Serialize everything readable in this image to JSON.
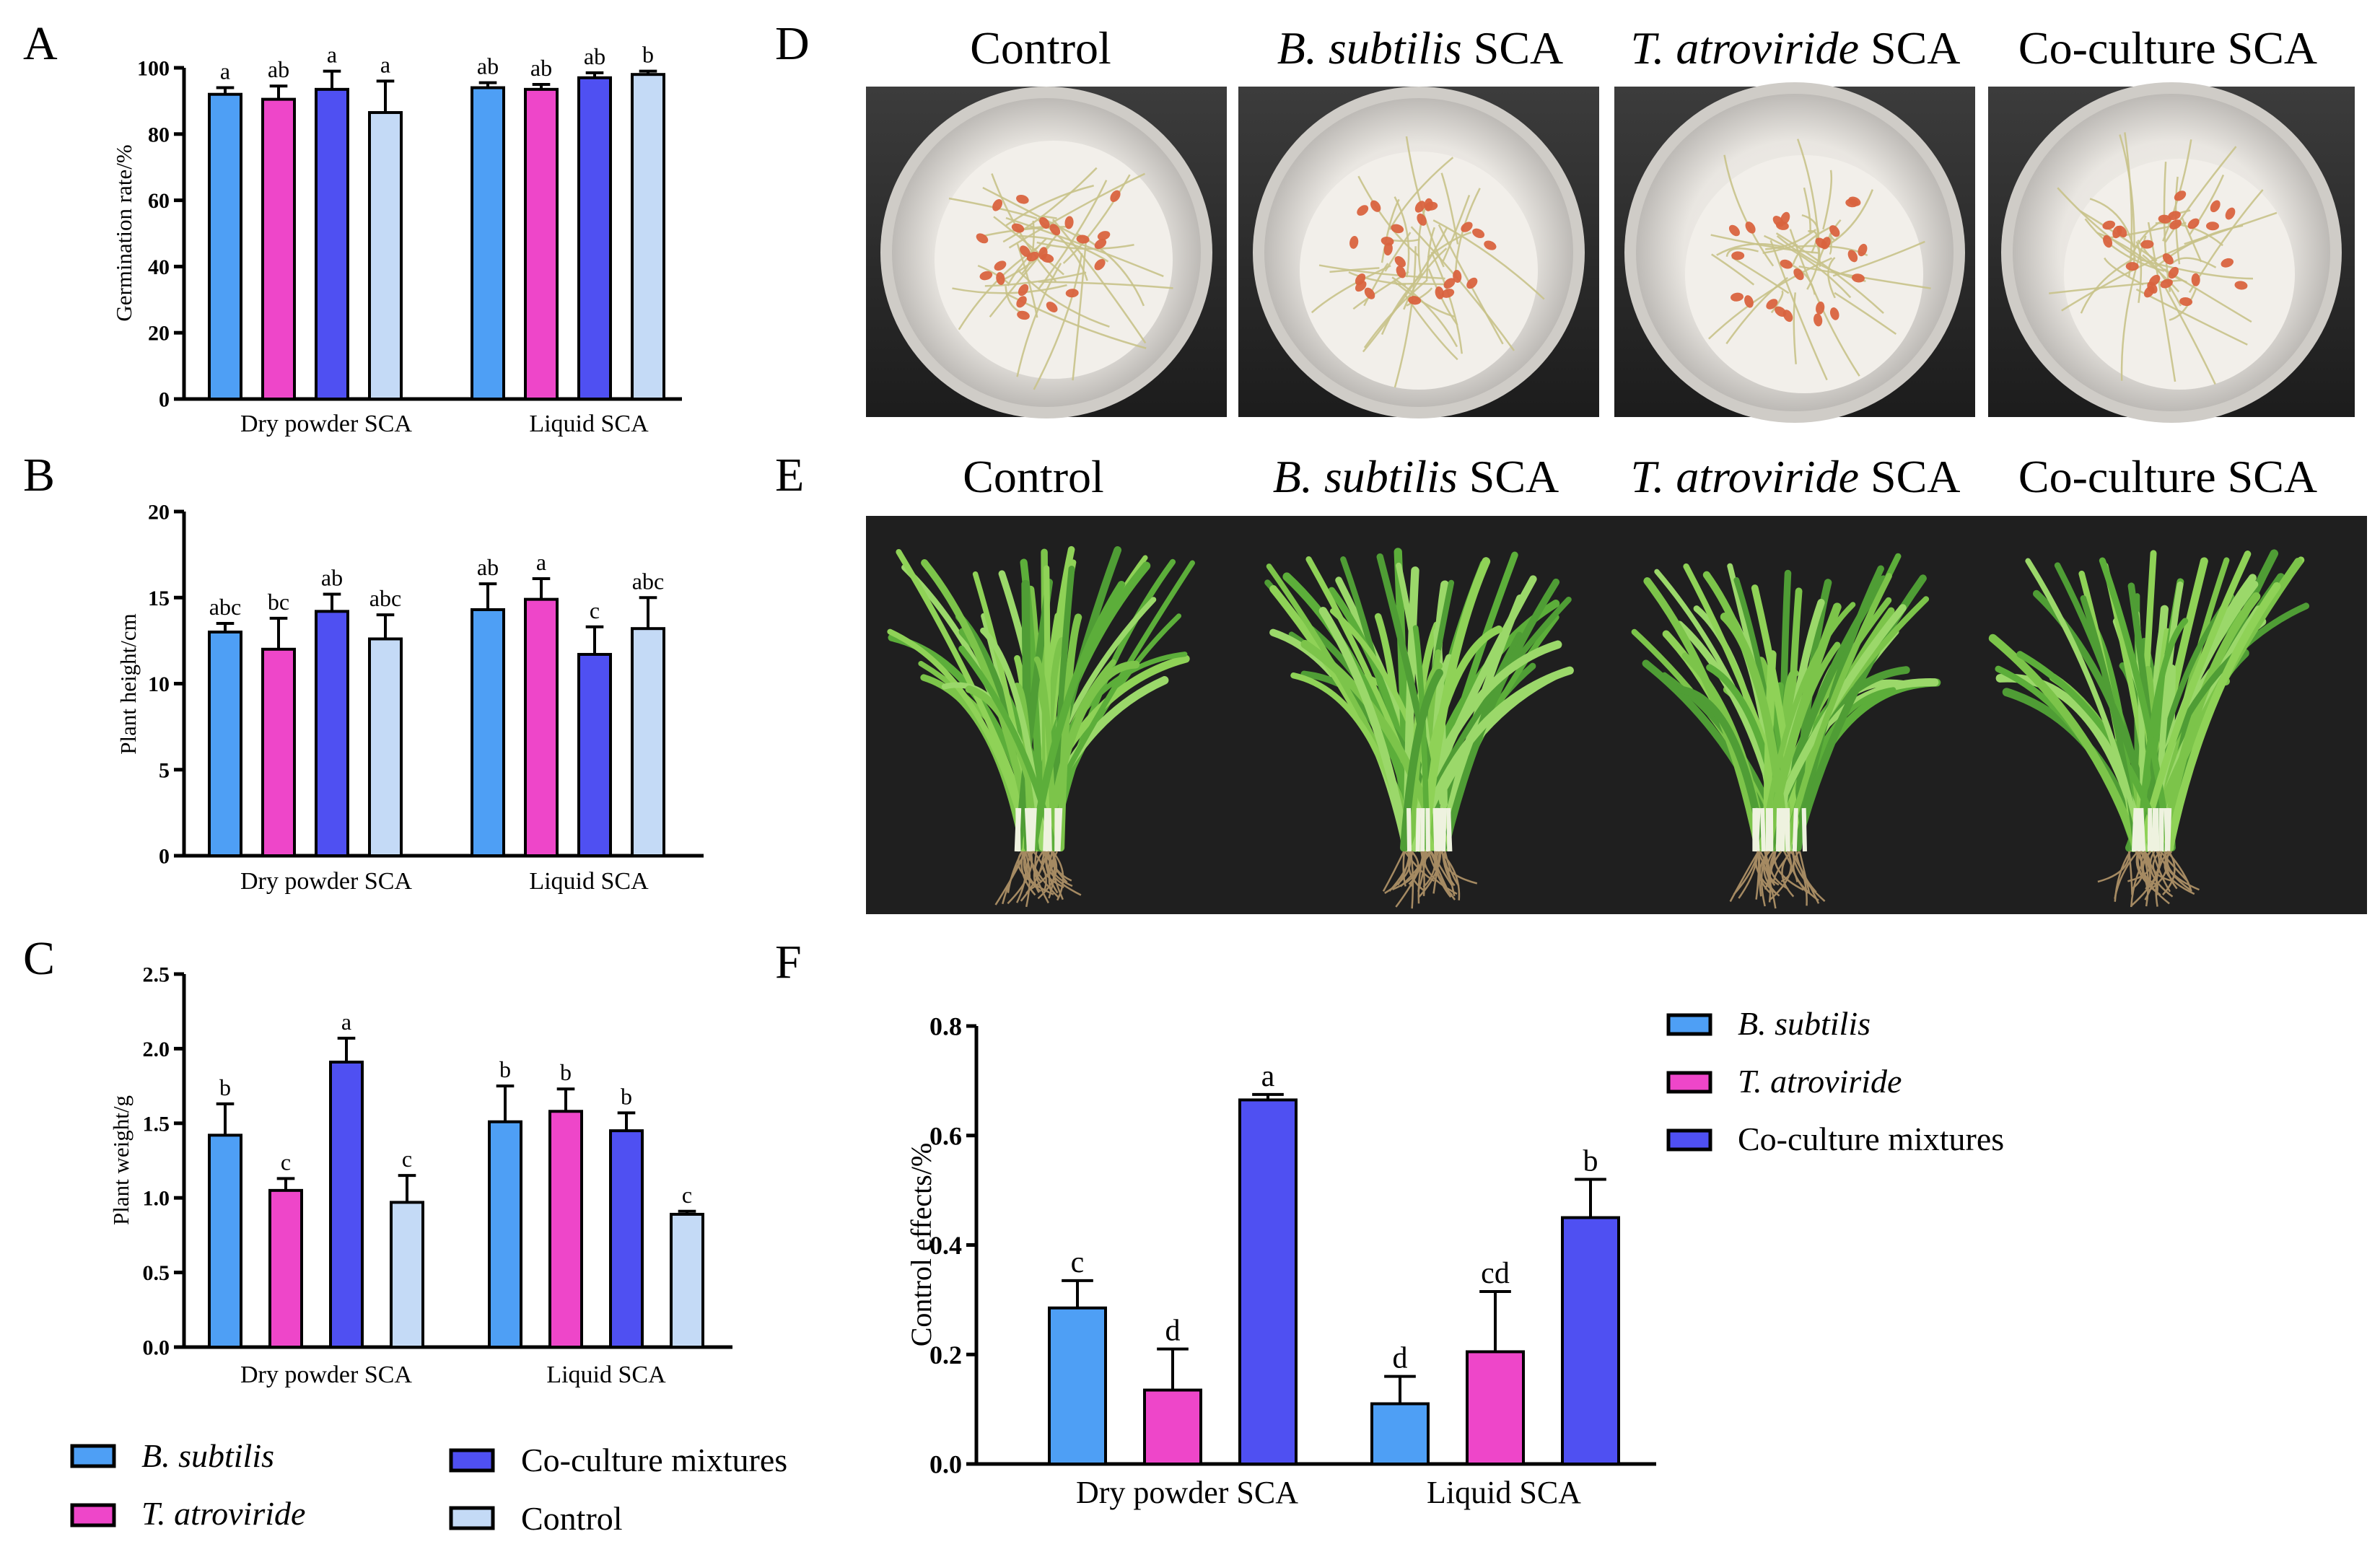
{
  "panel_letters": [
    "A",
    "B",
    "C",
    "D",
    "E",
    "F"
  ],
  "colors": {
    "b_subtilis": "#4e9ff5",
    "t_atroviride": "#ee46c9",
    "coculture": "#4f50f2",
    "control": "#c4daf6",
    "axis": "#000000"
  },
  "legend_abc": {
    "items": [
      {
        "label": "B. subtilis",
        "italic": true,
        "color_key": "b_subtilis"
      },
      {
        "label": "T. atroviride",
        "italic": true,
        "color_key": "t_atroviride"
      },
      {
        "label": "Co-culture mixtures",
        "italic": false,
        "color_key": "coculture"
      },
      {
        "label": "Control",
        "italic": false,
        "color_key": "control"
      }
    ]
  },
  "legend_f": {
    "items": [
      {
        "label": "B. subtilis",
        "italic": true,
        "color_key": "b_subtilis"
      },
      {
        "label": "T. atroviride",
        "italic": true,
        "color_key": "t_atroviride"
      },
      {
        "label": "Co-culture mixtures",
        "italic": false,
        "color_key": "coculture"
      }
    ]
  },
  "photo_titles": [
    {
      "italic_part": "",
      "normal_part": "Control"
    },
    {
      "italic_part": "B. subtilis",
      "normal_part": " SCA"
    },
    {
      "italic_part": "T. atroviride",
      "normal_part": " SCA"
    },
    {
      "italic_part": "",
      "normal_part": "Co-culture SCA"
    }
  ],
  "chart_data": [
    {
      "panel": "A",
      "type": "bar",
      "ylabel": "Germination rate/%",
      "ylim": [
        0,
        100
      ],
      "yticks": [
        0,
        20,
        40,
        60,
        80,
        100
      ],
      "categories": [
        "Dry powder SCA",
        "Liquid SCA"
      ],
      "series": [
        {
          "name": "B. subtilis",
          "values": [
            92,
            94
          ],
          "errors": [
            2,
            1.5
          ],
          "letters": [
            "a",
            "ab"
          ]
        },
        {
          "name": "T. atroviride",
          "values": [
            90.5,
            93.5
          ],
          "errors": [
            4,
            1.5
          ],
          "letters": [
            "ab",
            "ab"
          ]
        },
        {
          "name": "Co-culture mixtures",
          "values": [
            93.5,
            97
          ],
          "errors": [
            5.5,
            1.5
          ],
          "letters": [
            "a",
            "ab"
          ]
        },
        {
          "name": "Control",
          "values": [
            86.5,
            98
          ],
          "errors": [
            9.5,
            1
          ],
          "letters": [
            "a",
            "b"
          ]
        }
      ]
    },
    {
      "panel": "B",
      "type": "bar",
      "ylabel": "Plant height/cm",
      "ylim": [
        0,
        20
      ],
      "yticks": [
        0,
        5,
        10,
        15,
        20
      ],
      "categories": [
        "Dry powder SCA",
        "Liquid SCA"
      ],
      "series": [
        {
          "name": "B. subtilis",
          "values": [
            13,
            14.3
          ],
          "errors": [
            0.5,
            1.5
          ],
          "letters": [
            "abc",
            "ab"
          ]
        },
        {
          "name": "T. atroviride",
          "values": [
            12,
            14.9
          ],
          "errors": [
            1.8,
            1.2
          ],
          "letters": [
            "bc",
            "a"
          ]
        },
        {
          "name": "Co-culture mixtures",
          "values": [
            14.2,
            11.7
          ],
          "errors": [
            1,
            1.6
          ],
          "letters": [
            "ab",
            "c"
          ]
        },
        {
          "name": "Control",
          "values": [
            12.6,
            13.2
          ],
          "errors": [
            1.4,
            1.8
          ],
          "letters": [
            "abc",
            "abc"
          ]
        }
      ]
    },
    {
      "panel": "C",
      "type": "bar",
      "ylabel": "Plant weight/g",
      "ylim": [
        0,
        2.5
      ],
      "yticks": [
        "0.0",
        "0.5",
        "1.0",
        "1.5",
        "2.0",
        "2.5"
      ],
      "categories": [
        "Dry powder SCA",
        "Liquid SCA"
      ],
      "series": [
        {
          "name": "B. subtilis",
          "values": [
            1.42,
            1.51
          ],
          "errors": [
            0.21,
            0.24
          ],
          "letters": [
            "b",
            "b"
          ]
        },
        {
          "name": "T. atroviride",
          "values": [
            1.05,
            1.58
          ],
          "errors": [
            0.08,
            0.15
          ],
          "letters": [
            "c",
            "b"
          ]
        },
        {
          "name": "Co-culture mixtures",
          "values": [
            1.91,
            1.45
          ],
          "errors": [
            0.16,
            0.12
          ],
          "letters": [
            "a",
            "b"
          ]
        },
        {
          "name": "Control",
          "values": [
            0.97,
            0.89
          ],
          "errors": [
            0.18,
            0.02
          ],
          "letters": [
            "c",
            "c"
          ]
        }
      ]
    },
    {
      "panel": "F",
      "type": "bar",
      "ylabel": "Control effects/%",
      "ylim": [
        0,
        0.8
      ],
      "yticks": [
        "0.0",
        "0.2",
        "0.4",
        "0.6",
        "0.8"
      ],
      "categories": [
        "Dry powder SCA",
        "Liquid SCA"
      ],
      "series": [
        {
          "name": "B. subtilis",
          "values": [
            0.285,
            0.11
          ],
          "errors": [
            0.05,
            0.05
          ],
          "letters": [
            "c",
            "d"
          ]
        },
        {
          "name": "T. atroviride",
          "values": [
            0.135,
            0.205
          ],
          "errors": [
            0.075,
            0.11
          ],
          "letters": [
            "d",
            "cd"
          ]
        },
        {
          "name": "Co-culture mixtures",
          "values": [
            0.665,
            0.45
          ],
          "errors": [
            0.01,
            0.07
          ],
          "letters": [
            "a",
            "b"
          ]
        }
      ]
    }
  ]
}
